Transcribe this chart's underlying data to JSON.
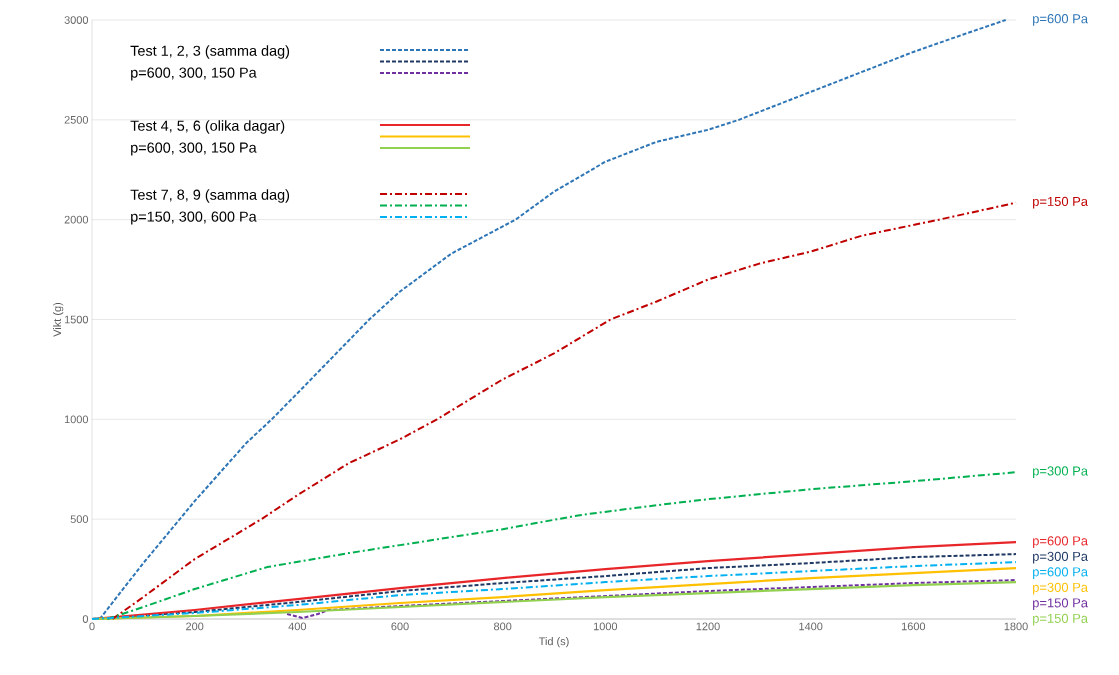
{
  "chart_data": {
    "type": "line",
    "xlabel": "Tid (s)",
    "ylabel": "Vikt (g)",
    "xlim": [
      0,
      1800
    ],
    "xticks": [
      0,
      200,
      400,
      600,
      800,
      1000,
      1200,
      1400,
      1600,
      1800
    ],
    "ylim": [
      0,
      3000
    ],
    "yticks": [
      0,
      500,
      1000,
      1500,
      2000,
      2500,
      3000
    ],
    "grid": "y",
    "marker": "none",
    "annotations": [
      "Test 1, 2, 3 (samma dag)",
      "p=600, 300, 150 Pa",
      "Test 4, 5, 6 (olika dagar)",
      "p=600, 300, 150 Pa",
      "Test 7, 8, 9 (samma dag)",
      "p=150, 300, 600 Pa"
    ],
    "series": [
      {
        "name": "p=600 Pa",
        "color": "#2e75b6",
        "line_style": "dashed",
        "x": [
          15,
          100,
          200,
          300,
          350,
          400,
          540,
          600,
          700,
          825,
          900,
          1000,
          1100,
          1200,
          1260,
          1400,
          1500,
          1600,
          1700,
          1780
        ],
        "values": [
          0,
          280,
          590,
          880,
          1000,
          1130,
          1500,
          1640,
          1830,
          2000,
          2140,
          2290,
          2390,
          2450,
          2500,
          2640,
          2740,
          2840,
          2930,
          3000
        ]
      },
      {
        "name": "p=300 Pa",
        "color": "#1f3864",
        "line_style": "dashed",
        "x": [
          0,
          200,
          400,
          600,
          800,
          1000,
          1200,
          1400,
          1600,
          1800
        ],
        "values": [
          0,
          35,
          85,
          140,
          180,
          215,
          255,
          280,
          310,
          325
        ]
      },
      {
        "name": "p=150 Pa",
        "color": "#7030a0",
        "line_style": "dashed",
        "x": [
          380,
          410,
          440,
          460,
          600,
          800,
          1000,
          1200,
          1400,
          1600,
          1800
        ],
        "values": [
          25,
          5,
          25,
          45,
          65,
          90,
          115,
          140,
          160,
          180,
          195
        ]
      },
      {
        "name": "p=600 Pa",
        "color": "#e8262a",
        "line_style": "solid",
        "x": [
          0,
          200,
          400,
          600,
          800,
          1000,
          1200,
          1400,
          1600,
          1800
        ],
        "values": [
          0,
          45,
          100,
          155,
          205,
          250,
          290,
          325,
          360,
          385
        ]
      },
      {
        "name": "p=300 Pa",
        "color": "#ffc000",
        "line_style": "solid",
        "x": [
          0,
          200,
          400,
          600,
          800,
          1000,
          1200,
          1400,
          1600,
          1800
        ],
        "values": [
          0,
          15,
          45,
          80,
          110,
          145,
          175,
          205,
          230,
          255
        ]
      },
      {
        "name": "p=150 Pa",
        "color": "#92d050",
        "line_style": "solid",
        "x": [
          0,
          200,
          400,
          600,
          800,
          1000,
          1200,
          1400,
          1600,
          1800
        ],
        "values": [
          0,
          15,
          35,
          60,
          85,
          110,
          130,
          150,
          170,
          185
        ]
      },
      {
        "name": "p=150 Pa",
        "color": "#c00000",
        "line_style": "dashdot",
        "x": [
          40,
          100,
          200,
          330,
          400,
          500,
          600,
          672,
          800,
          900,
          1010,
          1100,
          1200,
          1300,
          1400,
          1500,
          1650,
          1800
        ],
        "values": [
          0,
          110,
          300,
          500,
          620,
          780,
          900,
          1000,
          1200,
          1330,
          1500,
          1590,
          1700,
          1780,
          1840,
          1920,
          2000,
          2085
        ]
      },
      {
        "name": "p=300 Pa",
        "color": "#00b050",
        "line_style": "dashdot",
        "x": [
          30,
          100,
          200,
          341,
          500,
          600,
          800,
          950,
          1100,
          1200,
          1400,
          1600,
          1800
        ],
        "values": [
          0,
          60,
          150,
          260,
          330,
          370,
          450,
          520,
          570,
          600,
          650,
          690,
          735
        ]
      },
      {
        "name": "p=600 Pa",
        "color": "#00b0f0",
        "line_style": "dashdot",
        "x": [
          0,
          200,
          400,
          600,
          800,
          1000,
          1200,
          1400,
          1600,
          1800
        ],
        "values": [
          0,
          30,
          70,
          120,
          150,
          185,
          215,
          240,
          265,
          285
        ]
      }
    ]
  }
}
